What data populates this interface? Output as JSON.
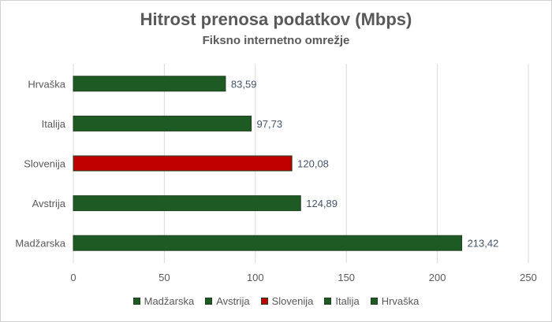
{
  "chart_data": {
    "type": "bar",
    "orientation": "horizontal",
    "title": "Hitrost prenosa podatkov (Mbps)",
    "subtitle": "Fiksno internetno omrežje",
    "categories": [
      "Hrvaška",
      "Italija",
      "Slovenija",
      "Avstrija",
      "Madžarska"
    ],
    "values": [
      83.59,
      97.73,
      120.08,
      124.89,
      213.42
    ],
    "value_labels": [
      "83,59",
      "97,73",
      "120,08",
      "124,89",
      "213,42"
    ],
    "colors": [
      "#1e5b24",
      "#1e5b24",
      "#c00000",
      "#1e5b24",
      "#1e5b24"
    ],
    "xlim": [
      0,
      250
    ],
    "xticks": [
      0,
      50,
      100,
      150,
      200,
      250
    ],
    "grid": "vertical",
    "legend": {
      "placement": "bottom",
      "entries": [
        {
          "name": "Madžarska",
          "color": "#1e5b24"
        },
        {
          "name": "Avstrija",
          "color": "#1e5b24"
        },
        {
          "name": "Slovenija",
          "color": "#c00000"
        },
        {
          "name": "Italija",
          "color": "#1e5b24"
        },
        {
          "name": "Hrvaška",
          "color": "#1e5b24"
        }
      ]
    }
  }
}
